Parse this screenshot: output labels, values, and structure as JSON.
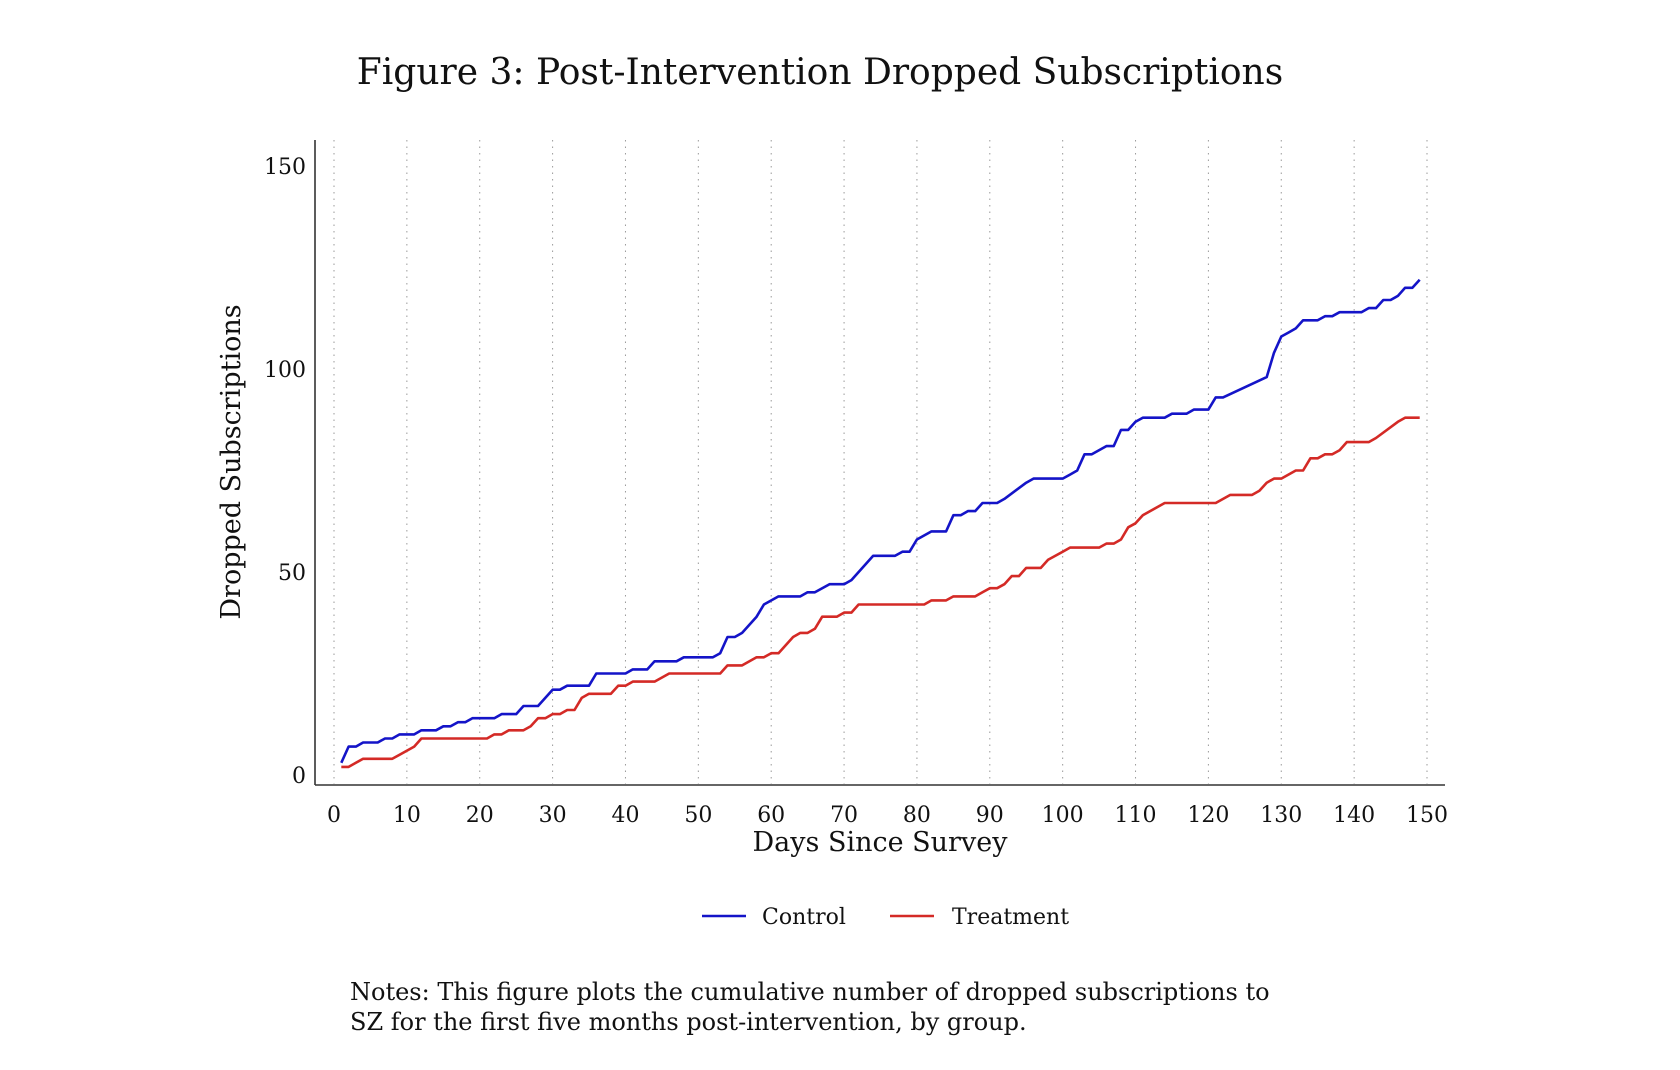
{
  "figure": {
    "title": "Figure 3: Post-Intervention Dropped Subscriptions",
    "notes_line1": "Notes: This figure plots the cumulative number of dropped subscriptions to",
    "notes_line2": "SZ for the first five months post-intervention, by group."
  },
  "chart_data": {
    "type": "line",
    "xlabel": "Days Since Survey",
    "ylabel": "Dropped Subscriptions",
    "xlim": [
      0,
      150
    ],
    "ylim": [
      0,
      150
    ],
    "xticks": [
      0,
      10,
      20,
      30,
      40,
      50,
      60,
      70,
      80,
      90,
      100,
      110,
      120,
      130,
      140,
      150
    ],
    "yticks": [
      0,
      50,
      100,
      150
    ],
    "grid": "vertical dotted",
    "legend_position": "bottom",
    "series": [
      {
        "name": "Control",
        "color": "#1414c8",
        "points": [
          [
            1,
            3
          ],
          [
            2,
            7
          ],
          [
            3,
            7
          ],
          [
            4,
            8
          ],
          [
            6,
            8
          ],
          [
            7,
            9
          ],
          [
            8,
            9
          ],
          [
            9,
            10
          ],
          [
            11,
            10
          ],
          [
            12,
            11
          ],
          [
            14,
            11
          ],
          [
            15,
            12
          ],
          [
            16,
            12
          ],
          [
            17,
            13
          ],
          [
            18,
            13
          ],
          [
            19,
            14
          ],
          [
            22,
            14
          ],
          [
            23,
            15
          ],
          [
            25,
            15
          ],
          [
            26,
            17
          ],
          [
            28,
            17
          ],
          [
            30,
            21
          ],
          [
            31,
            21
          ],
          [
            32,
            22
          ],
          [
            35,
            22
          ],
          [
            36,
            25
          ],
          [
            40,
            25
          ],
          [
            41,
            26
          ],
          [
            43,
            26
          ],
          [
            44,
            28
          ],
          [
            47,
            28
          ],
          [
            48,
            29
          ],
          [
            52,
            29
          ],
          [
            53,
            30
          ],
          [
            54,
            34
          ],
          [
            55,
            34
          ],
          [
            56,
            35
          ],
          [
            58,
            39
          ],
          [
            59,
            42
          ],
          [
            61,
            44
          ],
          [
            64,
            44
          ],
          [
            65,
            45
          ],
          [
            66,
            45
          ],
          [
            68,
            47
          ],
          [
            70,
            47
          ],
          [
            71,
            48
          ],
          [
            74,
            54
          ],
          [
            77,
            54
          ],
          [
            78,
            55
          ],
          [
            79,
            55
          ],
          [
            80,
            58
          ],
          [
            82,
            60
          ],
          [
            84,
            60
          ],
          [
            85,
            64
          ],
          [
            86,
            64
          ],
          [
            87,
            65
          ],
          [
            88,
            65
          ],
          [
            89,
            67
          ],
          [
            91,
            67
          ],
          [
            92,
            68
          ],
          [
            95,
            72
          ],
          [
            96,
            73
          ],
          [
            100,
            73
          ],
          [
            101,
            74
          ],
          [
            102,
            75
          ],
          [
            103,
            79
          ],
          [
            104,
            79
          ],
          [
            106,
            81
          ],
          [
            107,
            81
          ],
          [
            108,
            85
          ],
          [
            109,
            85
          ],
          [
            110,
            87
          ],
          [
            111,
            88
          ],
          [
            114,
            88
          ],
          [
            115,
            89
          ],
          [
            117,
            89
          ],
          [
            118,
            90
          ],
          [
            120,
            90
          ],
          [
            121,
            93
          ],
          [
            122,
            93
          ],
          [
            128,
            98
          ],
          [
            129,
            104
          ],
          [
            130,
            108
          ],
          [
            131,
            109
          ],
          [
            132,
            110
          ],
          [
            133,
            112
          ],
          [
            135,
            112
          ],
          [
            136,
            113
          ],
          [
            137,
            113
          ],
          [
            138,
            114
          ],
          [
            141,
            114
          ],
          [
            142,
            115
          ],
          [
            143,
            115
          ],
          [
            144,
            117
          ],
          [
            145,
            117
          ],
          [
            146,
            118
          ],
          [
            147,
            120
          ],
          [
            148,
            120
          ],
          [
            149,
            122
          ]
        ]
      },
      {
        "name": "Treatment",
        "color": "#d42a26",
        "points": [
          [
            1,
            2
          ],
          [
            2,
            2
          ],
          [
            3,
            3
          ],
          [
            4,
            4
          ],
          [
            8,
            4
          ],
          [
            9,
            5
          ],
          [
            11,
            7
          ],
          [
            12,
            9
          ],
          [
            21,
            9
          ],
          [
            22,
            10
          ],
          [
            23,
            10
          ],
          [
            24,
            11
          ],
          [
            26,
            11
          ],
          [
            27,
            12
          ],
          [
            28,
            14
          ],
          [
            29,
            14
          ],
          [
            30,
            15
          ],
          [
            31,
            15
          ],
          [
            32,
            16
          ],
          [
            33,
            16
          ],
          [
            34,
            19
          ],
          [
            35,
            20
          ],
          [
            38,
            20
          ],
          [
            39,
            22
          ],
          [
            40,
            22
          ],
          [
            41,
            23
          ],
          [
            44,
            23
          ],
          [
            46,
            25
          ],
          [
            53,
            25
          ],
          [
            54,
            27
          ],
          [
            56,
            27
          ],
          [
            58,
            29
          ],
          [
            59,
            29
          ],
          [
            60,
            30
          ],
          [
            61,
            30
          ],
          [
            63,
            34
          ],
          [
            64,
            35
          ],
          [
            65,
            35
          ],
          [
            66,
            36
          ],
          [
            67,
            39
          ],
          [
            69,
            39
          ],
          [
            70,
            40
          ],
          [
            71,
            40
          ],
          [
            72,
            42
          ],
          [
            81,
            42
          ],
          [
            82,
            43
          ],
          [
            84,
            43
          ],
          [
            85,
            44
          ],
          [
            88,
            44
          ],
          [
            89,
            45
          ],
          [
            90,
            46
          ],
          [
            91,
            46
          ],
          [
            92,
            47
          ],
          [
            93,
            49
          ],
          [
            94,
            49
          ],
          [
            95,
            51
          ],
          [
            97,
            51
          ],
          [
            98,
            53
          ],
          [
            100,
            55
          ],
          [
            101,
            56
          ],
          [
            105,
            56
          ],
          [
            106,
            57
          ],
          [
            107,
            57
          ],
          [
            108,
            58
          ],
          [
            109,
            61
          ],
          [
            110,
            62
          ],
          [
            111,
            64
          ],
          [
            114,
            67
          ],
          [
            121,
            67
          ],
          [
            123,
            69
          ],
          [
            126,
            69
          ],
          [
            127,
            70
          ],
          [
            128,
            72
          ],
          [
            129,
            73
          ],
          [
            130,
            73
          ],
          [
            132,
            75
          ],
          [
            133,
            75
          ],
          [
            134,
            78
          ],
          [
            135,
            78
          ],
          [
            136,
            79
          ],
          [
            137,
            79
          ],
          [
            138,
            80
          ],
          [
            139,
            82
          ],
          [
            142,
            82
          ],
          [
            143,
            83
          ],
          [
            146,
            87
          ],
          [
            147,
            88
          ],
          [
            149,
            88
          ]
        ]
      }
    ]
  }
}
